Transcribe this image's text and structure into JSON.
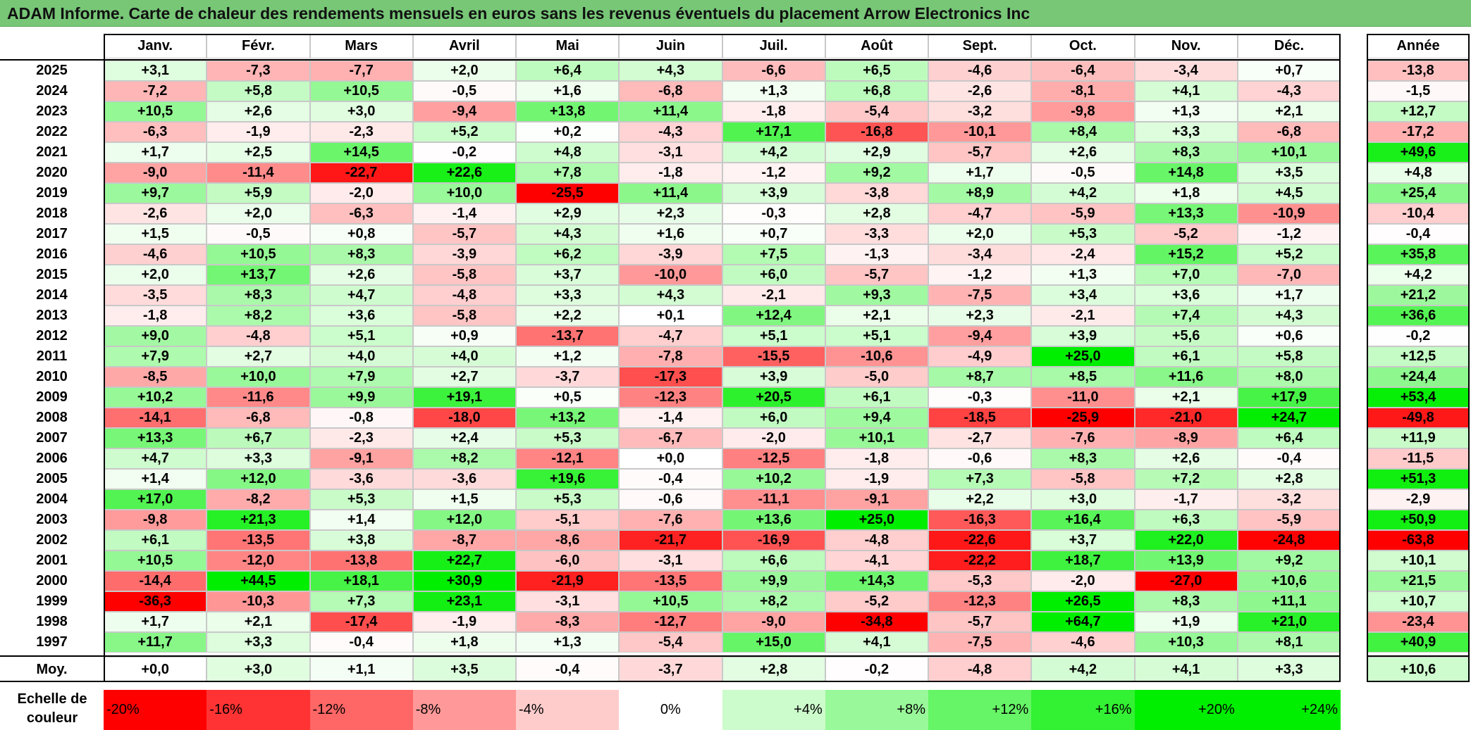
{
  "title": "ADAM Informe. Carte de chaleur des rendements mensuels en euros sans les revenus éventuels du placement Arrow Electronics Inc",
  "chart_data": {
    "type": "heatmap",
    "title": "ADAM Informe. Carte de chaleur des rendements mensuels en euros sans les revenus éventuels du placement Arrow Electronics Inc",
    "columns": [
      "Janv.",
      "Févr.",
      "Mars",
      "Avril",
      "Mai",
      "Juin",
      "Juil.",
      "Août",
      "Sept.",
      "Oct.",
      "Nov.",
      "Déc."
    ],
    "year_header": "Année",
    "rows": [
      {
        "year": "2025",
        "values": [
          "+3,1",
          "-7,3",
          "-7,7",
          "+2,0",
          "+6,4",
          "+4,3",
          "-6,6",
          "+6,5",
          "-4,6",
          "-6,4",
          "-3,4",
          "+0,7"
        ],
        "annual": "-13,8"
      },
      {
        "year": "2024",
        "values": [
          "-7,2",
          "+5,8",
          "+10,5",
          "-0,5",
          "+1,6",
          "-6,8",
          "+1,3",
          "+6,8",
          "-2,6",
          "-8,1",
          "+4,1",
          "-4,3"
        ],
        "annual": "-1,5"
      },
      {
        "year": "2023",
        "values": [
          "+10,5",
          "+2,6",
          "+3,0",
          "-9,4",
          "+13,8",
          "+11,4",
          "-1,8",
          "-5,4",
          "-3,2",
          "-9,8",
          "+1,3",
          "+2,1"
        ],
        "annual": "+12,7"
      },
      {
        "year": "2022",
        "values": [
          "-6,3",
          "-1,9",
          "-2,3",
          "+5,2",
          "+0,2",
          "-4,3",
          "+17,1",
          "-16,8",
          "-10,1",
          "+8,4",
          "+3,3",
          "-6,8"
        ],
        "annual": "-17,2"
      },
      {
        "year": "2021",
        "values": [
          "+1,7",
          "+2,5",
          "+14,5",
          "-0,2",
          "+4,8",
          "-3,1",
          "+4,2",
          "+2,9",
          "-5,7",
          "+2,6",
          "+8,3",
          "+10,1"
        ],
        "annual": "+49,6"
      },
      {
        "year": "2020",
        "values": [
          "-9,0",
          "-11,4",
          "-22,7",
          "+22,6",
          "+7,8",
          "-1,8",
          "-1,2",
          "+9,2",
          "+1,7",
          "-0,5",
          "+14,8",
          "+3,5"
        ],
        "annual": "+4,8"
      },
      {
        "year": "2019",
        "values": [
          "+9,7",
          "+5,9",
          "-2,0",
          "+10,0",
          "-25,5",
          "+11,4",
          "+3,9",
          "-3,8",
          "+8,9",
          "+4,2",
          "+1,8",
          "+4,5"
        ],
        "annual": "+25,4"
      },
      {
        "year": "2018",
        "values": [
          "-2,6",
          "+2,0",
          "-6,3",
          "-1,4",
          "+2,9",
          "+2,3",
          "-0,3",
          "+2,8",
          "-4,7",
          "-5,9",
          "+13,3",
          "-10,9"
        ],
        "annual": "-10,4"
      },
      {
        "year": "2017",
        "values": [
          "+1,5",
          "-0,5",
          "+0,8",
          "-5,7",
          "+4,3",
          "+1,6",
          "+0,7",
          "-3,3",
          "+2,0",
          "+5,3",
          "-5,2",
          "-1,2"
        ],
        "annual": "-0,4"
      },
      {
        "year": "2016",
        "values": [
          "-4,6",
          "+10,5",
          "+8,3",
          "-3,9",
          "+6,2",
          "-3,9",
          "+7,5",
          "-1,3",
          "-3,4",
          "-2,4",
          "+15,2",
          "+5,2"
        ],
        "annual": "+35,8"
      },
      {
        "year": "2015",
        "values": [
          "+2,0",
          "+13,7",
          "+2,6",
          "-5,8",
          "+3,7",
          "-10,0",
          "+6,0",
          "-5,7",
          "-1,2",
          "+1,3",
          "+7,0",
          "-7,0"
        ],
        "annual": "+4,2"
      },
      {
        "year": "2014",
        "values": [
          "-3,5",
          "+8,3",
          "+4,7",
          "-4,8",
          "+3,3",
          "+4,3",
          "-2,1",
          "+9,3",
          "-7,5",
          "+3,4",
          "+3,6",
          "+1,7"
        ],
        "annual": "+21,2"
      },
      {
        "year": "2013",
        "values": [
          "-1,8",
          "+8,2",
          "+3,6",
          "-5,8",
          "+2,2",
          "+0,1",
          "+12,4",
          "+2,1",
          "+2,3",
          "-2,1",
          "+7,4",
          "+4,3"
        ],
        "annual": "+36,6"
      },
      {
        "year": "2012",
        "values": [
          "+9,0",
          "-4,8",
          "+5,1",
          "+0,9",
          "-13,7",
          "-4,7",
          "+5,1",
          "+5,1",
          "-9,4",
          "+3,9",
          "+5,6",
          "+0,6"
        ],
        "annual": "-0,2"
      },
      {
        "year": "2011",
        "values": [
          "+7,9",
          "+2,7",
          "+4,0",
          "+4,0",
          "+1,2",
          "-7,8",
          "-15,5",
          "-10,6",
          "-4,9",
          "+25,0",
          "+6,1",
          "+5,8"
        ],
        "annual": "+12,5"
      },
      {
        "year": "2010",
        "values": [
          "-8,5",
          "+10,0",
          "+7,9",
          "+2,7",
          "-3,7",
          "-17,3",
          "+3,9",
          "-5,0",
          "+8,7",
          "+8,5",
          "+11,6",
          "+8,0"
        ],
        "annual": "+24,4"
      },
      {
        "year": "2009",
        "values": [
          "+10,2",
          "-11,6",
          "+9,9",
          "+19,1",
          "+0,5",
          "-12,3",
          "+20,5",
          "+6,1",
          "-0,3",
          "-11,0",
          "+2,1",
          "+17,9"
        ],
        "annual": "+53,4"
      },
      {
        "year": "2008",
        "values": [
          "-14,1",
          "-6,8",
          "-0,8",
          "-18,0",
          "+13,2",
          "-1,4",
          "+6,0",
          "+9,4",
          "-18,5",
          "-25,9",
          "-21,0",
          "+24,7"
        ],
        "annual": "-49,8"
      },
      {
        "year": "2007",
        "values": [
          "+13,3",
          "+6,7",
          "-2,3",
          "+2,4",
          "+5,3",
          "-6,7",
          "-2,0",
          "+10,1",
          "-2,7",
          "-7,6",
          "-8,9",
          "+6,4"
        ],
        "annual": "+11,9"
      },
      {
        "year": "2006",
        "values": [
          "+4,7",
          "+3,3",
          "-9,1",
          "+8,2",
          "-12,1",
          "+0,0",
          "-12,5",
          "-1,8",
          "-0,6",
          "+8,3",
          "+2,6",
          "-0,4"
        ],
        "annual": "-11,5"
      },
      {
        "year": "2005",
        "values": [
          "+1,4",
          "+12,0",
          "-3,6",
          "-3,6",
          "+19,6",
          "-0,4",
          "+10,2",
          "-1,9",
          "+7,3",
          "-5,8",
          "+7,2",
          "+2,8"
        ],
        "annual": "+51,3"
      },
      {
        "year": "2004",
        "values": [
          "+17,0",
          "-8,2",
          "+5,3",
          "+1,5",
          "+5,3",
          "-0,6",
          "-11,1",
          "-9,1",
          "+2,2",
          "+3,0",
          "-1,7",
          "-3,2"
        ],
        "annual": "-2,9"
      },
      {
        "year": "2003",
        "values": [
          "-9,8",
          "+21,3",
          "+1,4",
          "+12,0",
          "-5,1",
          "-7,6",
          "+13,6",
          "+25,0",
          "-16,3",
          "+16,4",
          "+6,3",
          "-5,9"
        ],
        "annual": "+50,9"
      },
      {
        "year": "2002",
        "values": [
          "+6,1",
          "-13,5",
          "+3,8",
          "-8,7",
          "-8,6",
          "-21,7",
          "-16,9",
          "-4,8",
          "-22,6",
          "+3,7",
          "+22,0",
          "-24,8"
        ],
        "annual": "-63,8"
      },
      {
        "year": "2001",
        "values": [
          "+10,5",
          "-12,0",
          "-13,8",
          "+22,7",
          "-6,0",
          "-3,1",
          "+6,6",
          "-4,1",
          "-22,2",
          "+18,7",
          "+13,9",
          "+9,2"
        ],
        "annual": "+10,1"
      },
      {
        "year": "2000",
        "values": [
          "-14,4",
          "+44,5",
          "+18,1",
          "+30,9",
          "-21,9",
          "-13,5",
          "+9,9",
          "+14,3",
          "-5,3",
          "-2,0",
          "-27,0",
          "+10,6"
        ],
        "annual": "+21,5"
      },
      {
        "year": "1999",
        "values": [
          "-36,3",
          "-10,3",
          "+7,3",
          "+23,1",
          "-3,1",
          "+10,5",
          "+8,2",
          "-5,2",
          "-12,3",
          "+26,5",
          "+8,3",
          "+11,1"
        ],
        "annual": "+10,7"
      },
      {
        "year": "1998",
        "values": [
          "+1,7",
          "+2,1",
          "-17,4",
          "-1,9",
          "-8,3",
          "-12,7",
          "-9,0",
          "-34,8",
          "-5,7",
          "+64,7",
          "+1,9",
          "+21,0"
        ],
        "annual": "-23,4"
      },
      {
        "year": "1997",
        "values": [
          "+11,7",
          "+3,3",
          "-0,4",
          "+1,8",
          "+1,3",
          "-5,4",
          "+15,0",
          "+4,1",
          "-7,5",
          "-4,6",
          "+10,3",
          "+8,1"
        ],
        "annual": "+40,9"
      }
    ],
    "average_label": "Moy.",
    "average_values": [
      "+0,0",
      "+3,0",
      "+1,1",
      "+3,5",
      "-0,4",
      "-3,7",
      "+2,8",
      "-0,2",
      "-4,8",
      "+4,2",
      "+4,1",
      "+3,3"
    ],
    "average_annual": "+10,6",
    "scale_label": "Echelle de couleur",
    "scale": [
      "-20%",
      "-16%",
      "-12%",
      "-8%",
      "-4%",
      "0%",
      "+4%",
      "+8%",
      "+12%",
      "+16%",
      "+20%",
      "+24%"
    ],
    "colors": {
      "negative": "#ff0000",
      "zero": "#ffffff",
      "positive": "#00ee00",
      "title_bar": "#77c777"
    }
  }
}
